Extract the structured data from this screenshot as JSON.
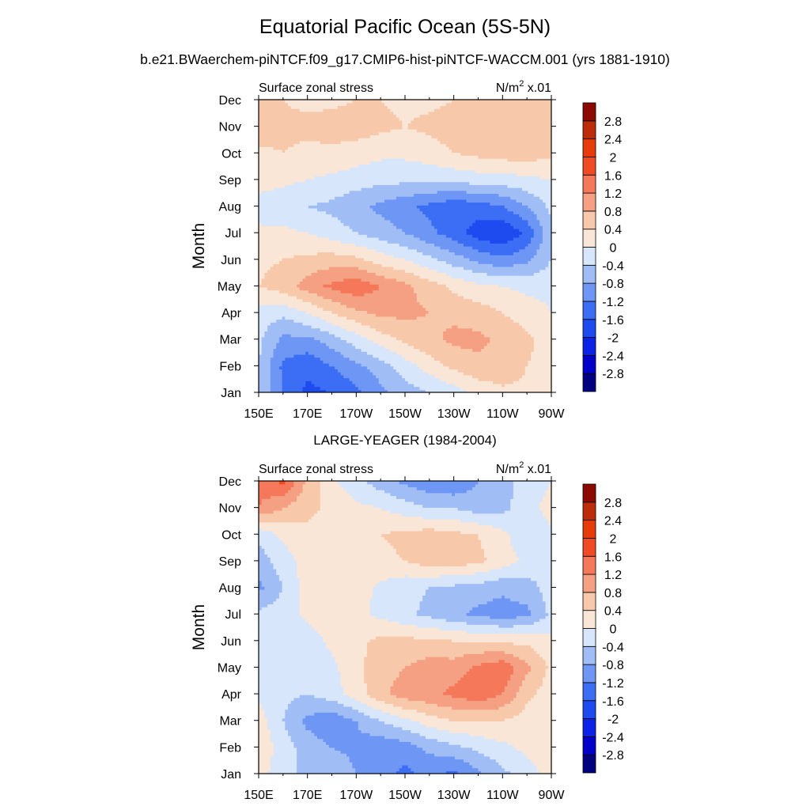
{
  "title": "Equatorial Pacific Ocean (5S-5N)",
  "subtitle": "b.e21.BWaerchem-piNTCF.f09_g17.CMIP6-hist-piNTCF-WACCM.001 (yrs 1881-1910)",
  "chart_data": [
    {
      "type": "heatmap",
      "left_label": "Surface zonal stress",
      "right_label_base": "N/m",
      "right_label_exp": "2",
      "right_label_tail": " x.01",
      "ylabel": "Month",
      "x_ticks": [
        "150E",
        "170E",
        "170W",
        "150W",
        "130W",
        "110W",
        "90W"
      ],
      "x_range_lon": [
        150,
        270
      ],
      "y_ticks": [
        "Jan",
        "Feb",
        "Mar",
        "Apr",
        "May",
        "Jun",
        "Jul",
        "Aug",
        "Sep",
        "Oct",
        "Nov",
        "Dec"
      ],
      "lon": [
        150,
        160,
        170,
        180,
        190,
        200,
        210,
        220,
        230,
        240,
        250,
        260,
        270
      ],
      "values": [
        [
          -0.4,
          -1.2,
          -1.7,
          -1.6,
          -1.3,
          -0.9,
          -0.6,
          -0.4,
          -0.2,
          0.1,
          0.3,
          0.3,
          0.2
        ],
        [
          -0.4,
          -1.3,
          -1.5,
          -1.2,
          -0.9,
          -0.6,
          -0.2,
          0.2,
          0.5,
          0.7,
          0.7,
          0.4,
          0.2
        ],
        [
          -0.3,
          -0.9,
          -0.9,
          -0.6,
          -0.2,
          0.2,
          0.5,
          0.7,
          0.9,
          0.9,
          0.7,
          0.5,
          0.2
        ],
        [
          -0.2,
          -0.3,
          0.0,
          0.4,
          0.7,
          0.9,
          0.9,
          0.8,
          0.7,
          0.6,
          0.4,
          0.2,
          0.0
        ],
        [
          0.4,
          0.6,
          1.0,
          1.3,
          1.5,
          1.2,
          0.9,
          0.6,
          0.3,
          0.1,
          0.0,
          -0.1,
          -0.1
        ],
        [
          0.3,
          0.4,
          0.5,
          0.6,
          0.5,
          0.2,
          0.0,
          -0.3,
          -0.6,
          -0.9,
          -1.1,
          -0.9,
          -0.4
        ],
        [
          0.1,
          0.1,
          0.0,
          -0.2,
          -0.4,
          -0.6,
          -0.8,
          -1.1,
          -1.4,
          -1.8,
          -2.0,
          -1.5,
          -0.5
        ],
        [
          -0.2,
          -0.3,
          -0.4,
          -0.5,
          -0.7,
          -0.9,
          -1.1,
          -1.3,
          -1.5,
          -1.4,
          -1.2,
          -0.8,
          -0.3
        ],
        [
          0.2,
          0.1,
          0.0,
          -0.1,
          -0.2,
          -0.3,
          -0.3,
          -0.3,
          -0.3,
          -0.2,
          -0.2,
          -0.1,
          0.0
        ],
        [
          0.3,
          0.4,
          0.3,
          0.3,
          0.2,
          0.1,
          0.1,
          0.2,
          0.4,
          0.5,
          0.6,
          0.6,
          0.5
        ],
        [
          0.7,
          0.5,
          0.5,
          0.6,
          0.6,
          0.5,
          0.4,
          0.5,
          0.6,
          0.7,
          0.6,
          0.5,
          0.5
        ],
        [
          0.5,
          0.4,
          0.3,
          0.3,
          0.4,
          0.4,
          0.3,
          0.3,
          0.4,
          0.5,
          0.5,
          0.5,
          0.4
        ]
      ],
      "contour_levels": [
        -2.8,
        -2.4,
        -2,
        -1.6,
        -1.2,
        -0.8,
        -0.4,
        0,
        0.4,
        0.8,
        1.2,
        1.6,
        2,
        2.4,
        2.8
      ]
    },
    {
      "type": "heatmap",
      "title": "LARGE-YEAGER (1984-2004)",
      "left_label": "Surface zonal stress",
      "right_label_base": "N/m",
      "right_label_exp": "2",
      "right_label_tail": " x.01",
      "ylabel": "Month",
      "x_ticks": [
        "150E",
        "170E",
        "170W",
        "150W",
        "130W",
        "110W",
        "90W"
      ],
      "x_range_lon": [
        150,
        270
      ],
      "y_ticks": [
        "Jan",
        "Feb",
        "Mar",
        "Apr",
        "May",
        "Jun",
        "Jul",
        "Aug",
        "Sep",
        "Oct",
        "Nov",
        "Dec"
      ],
      "lon": [
        150,
        160,
        170,
        180,
        190,
        200,
        210,
        220,
        230,
        240,
        250,
        260,
        270
      ],
      "values": [
        [
          0.2,
          -0.3,
          -0.5,
          -0.5,
          -0.8,
          -1.0,
          -1.3,
          -1.1,
          -1.3,
          -0.9,
          -0.5,
          -0.2,
          0.2
        ],
        [
          0.3,
          -0.2,
          -0.6,
          -0.8,
          -0.9,
          -1.1,
          -1.0,
          -0.7,
          -0.5,
          -0.3,
          -0.1,
          0.1,
          0.2
        ],
        [
          0.2,
          -0.4,
          -0.9,
          -1.1,
          -0.8,
          -0.4,
          -0.1,
          0.2,
          0.4,
          0.4,
          0.4,
          0.2,
          0.1
        ],
        [
          -0.1,
          -0.3,
          -0.4,
          -0.2,
          0.2,
          0.7,
          1.0,
          1.1,
          1.3,
          1.5,
          1.2,
          0.5,
          0.2
        ],
        [
          -0.3,
          -0.4,
          -0.3,
          -0.1,
          0.3,
          0.6,
          0.8,
          1.0,
          1.0,
          1.3,
          1.5,
          0.9,
          0.3
        ],
        [
          -0.2,
          -0.3,
          -0.2,
          0.1,
          0.3,
          0.5,
          0.5,
          0.5,
          0.4,
          0.4,
          0.3,
          0.3,
          0.1
        ],
        [
          -0.3,
          -0.2,
          0.1,
          0.2,
          0.1,
          -0.1,
          -0.3,
          -0.5,
          -0.7,
          -0.9,
          -1.0,
          -0.9,
          -0.3
        ],
        [
          -0.9,
          -0.4,
          0.2,
          0.3,
          0.2,
          -0.1,
          -0.3,
          -0.4,
          -0.5,
          -0.6,
          -0.7,
          -0.6,
          -0.2
        ],
        [
          -0.6,
          -0.2,
          0.2,
          0.3,
          0.3,
          0.3,
          0.4,
          0.6,
          0.6,
          0.5,
          0.2,
          -0.1,
          -0.3
        ],
        [
          -0.3,
          0.1,
          0.3,
          0.3,
          0.3,
          0.4,
          0.5,
          0.6,
          0.5,
          0.4,
          0.1,
          -0.3,
          -0.1
        ],
        [
          1.2,
          0.8,
          0.5,
          0.3,
          0.1,
          0.0,
          -0.2,
          -0.4,
          -0.4,
          -0.6,
          -0.5,
          -0.2,
          0.2
        ],
        [
          1.3,
          1.7,
          0.7,
          0.1,
          -0.3,
          -0.6,
          -0.9,
          -1.1,
          -1.2,
          -0.8,
          -0.5,
          -0.3,
          0.0
        ]
      ],
      "contour_levels": [
        -2.8,
        -2.4,
        -2,
        -1.6,
        -1.2,
        -0.8,
        -0.4,
        0,
        0.4,
        0.8,
        1.2,
        1.6,
        2,
        2.4,
        2.8
      ]
    }
  ],
  "colorbar": {
    "labels": [
      "2.8",
      "2.4",
      "2",
      "1.6",
      "1.2",
      "0.8",
      "0.4",
      "0",
      "-0.4",
      "-0.8",
      "-1.2",
      "-1.6",
      "-2",
      "-2.4",
      "-2.8"
    ],
    "colors": [
      "#000080",
      "#0000c8",
      "#0a23e6",
      "#1e4bf0",
      "#3c6ef5",
      "#6e96f5",
      "#a0bef5",
      "#d7e6fa",
      "#fae6d7",
      "#f8c8aa",
      "#f5a082",
      "#f5785a",
      "#f04b23",
      "#e63c0a",
      "#bd2d0a",
      "#8c0a00"
    ]
  }
}
